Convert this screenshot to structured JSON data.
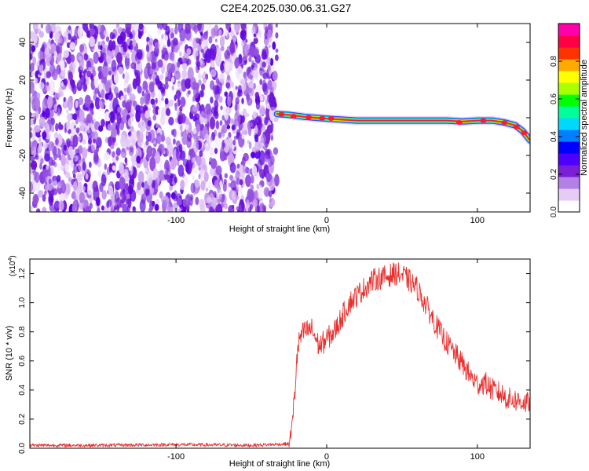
{
  "title": "C2E4.2025.030.06.31.G27",
  "chart_data": [
    {
      "type": "heatmap",
      "xlabel": "Height of straight line (km)",
      "ylabel": "Frequency (Hz)",
      "xlim": [
        -197,
        135
      ],
      "ylim": [
        -50,
        50
      ],
      "xticks": [
        -100,
        0,
        100
      ],
      "xtick_labels": [
        "-100",
        "0",
        "100"
      ],
      "yticks": [
        -40,
        -20,
        0,
        20,
        40
      ],
      "ytick_labels": [
        "-40",
        "-20",
        "0",
        "20",
        "40"
      ],
      "noise_region": {
        "x": [
          -197,
          -33
        ],
        "y": [
          -50,
          50
        ],
        "color": "purple-violet speckle"
      },
      "signal_ridge": {
        "x": [
          -33,
          -25,
          -15,
          0,
          20,
          40,
          60,
          80,
          90,
          100,
          110,
          118,
          125,
          130,
          135
        ],
        "freq": [
          2,
          1.5,
          0.5,
          -0.5,
          -1.5,
          -1.5,
          -1.5,
          -1.5,
          -2,
          -1.5,
          -1.5,
          -2.5,
          -4,
          -7,
          -12
        ],
        "peak_amplitude": 1.0
      },
      "colorbar": {
        "label": "Normalized spectral amplitude",
        "range": [
          0.0,
          1.0
        ],
        "ticks": [
          0.0,
          0.2,
          0.4,
          0.6,
          0.8
        ],
        "tick_labels": [
          "0.0",
          "0.2",
          "0.4",
          "0.6",
          "0.8"
        ],
        "colors": [
          "#ffffff",
          "#e6ccf5",
          "#b380e6",
          "#7a1fd6",
          "#4d00ff",
          "#0000ff",
          "#0080ff",
          "#00d8ff",
          "#00ff9a",
          "#00ff00",
          "#aaff00",
          "#ffff00",
          "#ffaa00",
          "#ff3300",
          "#ff0044",
          "#ff00aa"
        ]
      }
    },
    {
      "type": "line",
      "xlabel": "Height of straight line (km)",
      "ylabel": "SNR (10 * v/v)",
      "y_multiplier": "(x10",
      "y_multiplier_exp": "4",
      "y_multiplier_close": ")",
      "xlim": [
        -197,
        135
      ],
      "ylim": [
        0.0,
        1.3
      ],
      "xticks": [
        -100,
        0,
        100
      ],
      "xtick_labels": [
        "-100",
        "0",
        "100"
      ],
      "yticks": [
        0.0,
        0.2,
        0.4,
        0.6,
        0.8,
        1.0,
        1.2
      ],
      "ytick_labels": [
        "0.0",
        "0.2",
        "0.4",
        "0.6",
        "0.8",
        "1.0",
        "1.2"
      ],
      "color": "#e8302e",
      "series": [
        {
          "name": "SNR",
          "x": [
            -197,
            -150,
            -100,
            -50,
            -25,
            -23,
            -21,
            -20,
            -18,
            -15,
            -10,
            -5,
            0,
            5,
            10,
            15,
            20,
            25,
            30,
            35,
            40,
            45,
            50,
            55,
            60,
            65,
            70,
            75,
            80,
            85,
            90,
            95,
            100,
            105,
            110,
            115,
            120,
            125,
            130,
            135
          ],
          "y": [
            0.02,
            0.02,
            0.025,
            0.02,
            0.03,
            0.15,
            0.4,
            0.6,
            0.75,
            0.8,
            0.82,
            0.7,
            0.75,
            0.8,
            0.9,
            1.0,
            1.05,
            1.1,
            1.15,
            1.17,
            1.18,
            1.2,
            1.19,
            1.15,
            1.1,
            1.0,
            0.9,
            0.8,
            0.72,
            0.65,
            0.58,
            0.5,
            0.44,
            0.45,
            0.4,
            0.38,
            0.34,
            0.33,
            0.32,
            0.3
          ],
          "noise_amplitude": 0.08
        }
      ]
    }
  ]
}
